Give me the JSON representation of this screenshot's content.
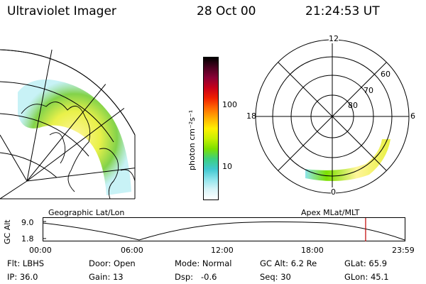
{
  "header": {
    "instrument": "Ultraviolet Imager",
    "date": "28 Oct 00",
    "time": "21:24:53 UT"
  },
  "colorbar": {
    "unit_label": "photon cm⁻²s⁻¹",
    "ticks": [
      "100",
      "10"
    ],
    "colors": [
      "#000000",
      "#4a0020",
      "#8a0035",
      "#c8001a",
      "#f02000",
      "#ff6a00",
      "#ffb000",
      "#fff000",
      "#c8f000",
      "#7ce000",
      "#3cd080",
      "#40c8d0",
      "#8ee4ec",
      "#d8f4f8",
      "#ffffff"
    ]
  },
  "left_map": {
    "label": "Geographic Lat/Lon"
  },
  "right_map": {
    "label": "Apex MLat/MLT",
    "mlt_labels": {
      "top": "12",
      "left": "18",
      "right": "6",
      "bottom": "0"
    },
    "lat_labels": [
      "60",
      "70",
      "80"
    ]
  },
  "altitude_plot": {
    "ylabel": "GC Alt",
    "yticks": [
      "9.0",
      "1.8"
    ],
    "xticks": [
      "00:00",
      "06:00",
      "12:00",
      "18:00",
      "23:59"
    ],
    "current_time_marker_hours": 21.41,
    "marker_color": "#c00000"
  },
  "status": {
    "row1": {
      "flt": "Flt: LBHS",
      "door": "Door: Open",
      "mode": "Mode: Normal",
      "gc_alt": "GC Alt: 6.2 Re",
      "glat": "GLat: 65.9"
    },
    "row2": {
      "ip": "IP: 36.0",
      "gain": "Gain: 13",
      "dsp": "Dsp:   -0.6",
      "seq": "Seq: 30",
      "glon": "GLon: 45.1"
    }
  }
}
